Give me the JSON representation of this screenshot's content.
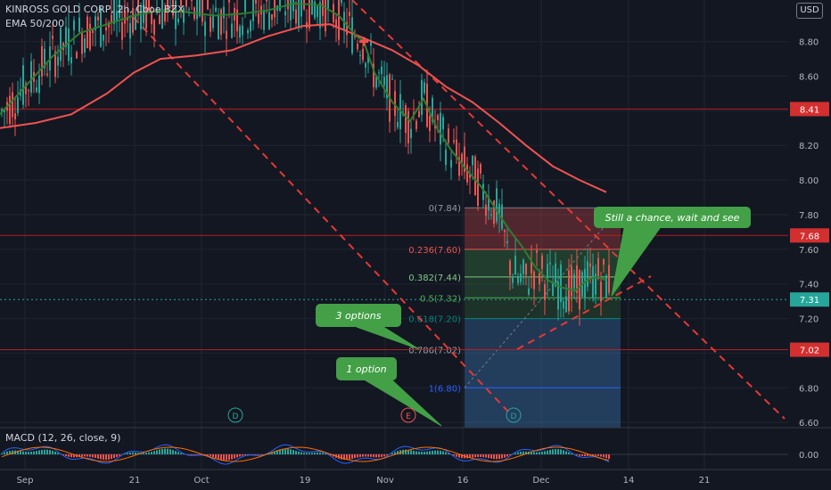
{
  "header": {
    "title": "KINROSS GOLD CORP, 2h, Cboe BZX",
    "subtitle": "EMA 50/200"
  },
  "currency_button": "USD",
  "macd_label": "MACD (12, 26, close, 9)",
  "colors": {
    "background": "#131722",
    "grid": "#1f2430",
    "axis_text": "#b2b5be",
    "up": "#26a69a",
    "down": "#ef5350",
    "ema50": "#2e7d32",
    "ema200": "#ef5350",
    "trend": "#e53935",
    "price_line": "#26a69a"
  },
  "chart_data": {
    "type": "candlestick",
    "title": "KINROSS GOLD CORP, 2h, Cboe BZX",
    "indicators": [
      "EMA 50",
      "EMA 200",
      "MACD (12, 26, close, 9)"
    ],
    "x_ticks": [
      "Sep",
      "21",
      "Oct",
      "19",
      "Nov",
      "16",
      "Dec",
      "14",
      "21"
    ],
    "y_ticks": [
      6.6,
      6.8,
      7.0,
      7.2,
      7.4,
      7.6,
      7.8,
      8.0,
      8.2,
      8.4,
      8.6,
      8.8
    ],
    "ylim": [
      6.57,
      9.04
    ],
    "macd_ticks": [
      "0.00"
    ],
    "price_levels": [
      {
        "label": "8.41",
        "value": 8.41
      },
      {
        "label": "7.68",
        "value": 7.68
      },
      {
        "label": "7.02",
        "value": 7.02
      }
    ],
    "last_price": {
      "label": "7.31",
      "value": 7.31
    },
    "fibonacci": [
      {
        "label": "0(7.84)",
        "value": 7.84
      },
      {
        "label": "0.236(7.60)",
        "value": 7.6
      },
      {
        "label": "0.382(7.44)",
        "value": 7.44
      },
      {
        "label": "0.5(7.32)",
        "value": 7.32
      },
      {
        "label": "0.618(7.20)",
        "value": 7.2
      },
      {
        "label": "0.786(7.02)",
        "value": 7.02
      },
      {
        "label": "1(6.80)",
        "value": 6.8
      }
    ],
    "annotations": [
      {
        "text": "Still a chance, wait and see"
      },
      {
        "text": "3 options"
      },
      {
        "text": "1 option"
      }
    ],
    "event_markers": [
      "D",
      "E",
      "D"
    ],
    "ema50_path": [
      [
        0,
        8.38
      ],
      [
        30,
        8.55
      ],
      [
        60,
        8.72
      ],
      [
        90,
        8.85
      ],
      [
        120,
        8.9
      ],
      [
        150,
        8.95
      ],
      [
        180,
        8.98
      ],
      [
        210,
        8.97
      ],
      [
        240,
        8.95
      ],
      [
        270,
        8.96
      ],
      [
        300,
        8.98
      ],
      [
        330,
        9.02
      ],
      [
        360,
        9.01
      ],
      [
        380,
        8.95
      ],
      [
        400,
        8.83
      ],
      [
        408,
        8.8
      ],
      [
        420,
        8.62
      ],
      [
        440,
        8.45
      ],
      [
        460,
        8.34
      ],
      [
        475,
        8.47
      ],
      [
        490,
        8.3
      ],
      [
        505,
        8.18
      ],
      [
        520,
        8.08
      ],
      [
        540,
        7.96
      ],
      [
        555,
        7.84
      ],
      [
        570,
        7.72
      ],
      [
        585,
        7.62
      ],
      [
        600,
        7.5
      ],
      [
        615,
        7.42
      ],
      [
        630,
        7.38
      ],
      [
        645,
        7.36
      ],
      [
        660,
        7.43
      ],
      [
        672,
        7.44
      ],
      [
        680,
        7.42
      ]
    ],
    "ema200_path": [
      [
        0,
        8.3
      ],
      [
        40,
        8.33
      ],
      [
        80,
        8.38
      ],
      [
        120,
        8.5
      ],
      [
        150,
        8.62
      ],
      [
        180,
        8.7
      ],
      [
        220,
        8.72
      ],
      [
        260,
        8.75
      ],
      [
        300,
        8.83
      ],
      [
        340,
        8.89
      ],
      [
        370,
        8.9
      ],
      [
        408,
        8.82
      ],
      [
        440,
        8.75
      ],
      [
        470,
        8.66
      ],
      [
        500,
        8.54
      ],
      [
        530,
        8.45
      ],
      [
        560,
        8.33
      ],
      [
        590,
        8.2
      ],
      [
        620,
        8.08
      ],
      [
        650,
        8.0
      ],
      [
        680,
        7.93
      ]
    ]
  }
}
